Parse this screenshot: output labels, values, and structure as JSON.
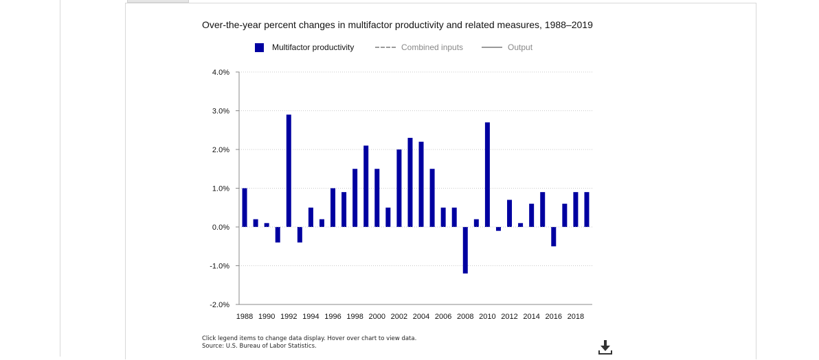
{
  "chart": {
    "title": "Over-the-year percent changes in multifactor productivity and related measures, 1988–2019",
    "legend": [
      {
        "label": "Multifactor productivity",
        "kind": "bar",
        "color": "#0000a0",
        "text_color": "#111111"
      },
      {
        "label": "Combined inputs",
        "kind": "dashed-line",
        "color": "#9a9a9a",
        "text_color": "#888888"
      },
      {
        "label": "Output",
        "kind": "solid-line",
        "color": "#9a9a9a",
        "text_color": "#888888"
      }
    ]
  },
  "chart_data": {
    "type": "bar",
    "title": "Over-the-year percent changes in multifactor productivity and related measures, 1988–2019",
    "x": [
      1988,
      1989,
      1990,
      1991,
      1992,
      1993,
      1994,
      1995,
      1996,
      1997,
      1998,
      1999,
      2000,
      2001,
      2002,
      2003,
      2004,
      2005,
      2006,
      2007,
      2008,
      2009,
      2010,
      2011,
      2012,
      2013,
      2014,
      2015,
      2016,
      2017,
      2018,
      2019
    ],
    "x_tick_labels": [
      "1988",
      "1990",
      "1992",
      "1994",
      "1996",
      "1998",
      "2000",
      "2002",
      "2004",
      "2006",
      "2008",
      "2010",
      "2012",
      "2014",
      "2016",
      "2018"
    ],
    "series": [
      {
        "name": "Multifactor productivity",
        "color": "#0000a0",
        "values": [
          1.0,
          0.2,
          0.1,
          -0.4,
          2.9,
          -0.4,
          0.5,
          0.2,
          1.0,
          0.9,
          1.5,
          2.1,
          1.5,
          0.5,
          2.0,
          2.3,
          2.2,
          1.5,
          0.5,
          0.5,
          -1.2,
          0.2,
          2.7,
          -0.1,
          0.7,
          0.1,
          0.6,
          0.9,
          -0.5,
          0.6,
          0.9,
          0.9
        ]
      }
    ],
    "y_tick_labels": [
      "4.0%",
      "3.0%",
      "2.0%",
      "1.0%",
      "0.0%",
      "-1.0%",
      "-2.0%"
    ],
    "y_ticks": [
      4,
      3,
      2,
      1,
      0,
      -1,
      -2
    ],
    "ylim": [
      -2,
      4
    ],
    "grid": true,
    "legend_position": "top"
  },
  "footer": {
    "note": "Click legend items to change data display. Hover over chart to view data.",
    "source": "Source: U.S. Bureau of Labor Statistics."
  },
  "icons": {
    "download": "download-icon"
  }
}
